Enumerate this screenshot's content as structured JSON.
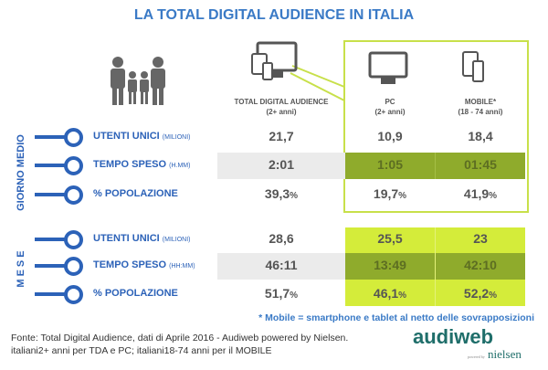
{
  "title": "LA TOTAL DIGITAL AUDIENCE IN ITALIA",
  "columns": [
    {
      "label": "TOTAL DIGITAL AUDIENCE",
      "sub": "(2+ anni)",
      "icon": "devices-icon"
    },
    {
      "label": "PC",
      "sub": "(2+ anni)",
      "icon": "monitor-icon"
    },
    {
      "label": "MOBILE*",
      "sub": "(18 - 74 anni)",
      "icon": "tablet-phone-icon"
    }
  ],
  "groups": [
    {
      "label": "GIORNO MEDIO",
      "rows": [
        {
          "label": "UTENTI UNICI",
          "unit": "(MILIONI)",
          "values": [
            "21,7",
            "10,9",
            "18,4"
          ],
          "pct": false
        },
        {
          "label": "TEMPO SPESO",
          "unit": "(H.MM)",
          "values": [
            "2:01",
            "1:05",
            "01:45"
          ],
          "pct": false
        },
        {
          "label": "% POPOLAZIONE",
          "unit": "",
          "values": [
            "39,3",
            "19,7",
            "41,9"
          ],
          "pct": true
        }
      ]
    },
    {
      "label": "MESE",
      "rows": [
        {
          "label": "UTENTI UNICI",
          "unit": "(MILIONI)",
          "values": [
            "28,6",
            "25,5",
            "23"
          ],
          "pct": false
        },
        {
          "label": "TEMPO SPESO",
          "unit": "(HH:MM)",
          "values": [
            "46:11",
            "13:49",
            "42:10"
          ],
          "pct": false
        },
        {
          "label": "% POPOLAZIONE",
          "unit": "",
          "values": [
            "51,7",
            "46,1",
            "52,2"
          ],
          "pct": true
        }
      ]
    }
  ],
  "pct_sign": "%",
  "note": "* Mobile = smartphone e tablet al netto delle sovrapposizioni",
  "source": [
    "Fonte: Total Digital Audience, dati di Aprile 2016 - Audiweb powered by Nielsen.",
    "italiani2+ anni per TDA e PC; italiani18-74 anni per il MOBILE"
  ],
  "logo": {
    "brand": "audiweb",
    "powered": "powered by",
    "partner": "nielsen"
  },
  "colors": {
    "blue": "#2c62b8",
    "title_blue": "#3a7ac6",
    "lime": "#d4ec3a",
    "dark_green": "#8fab2c",
    "highlight_border": "#c8e04a"
  }
}
